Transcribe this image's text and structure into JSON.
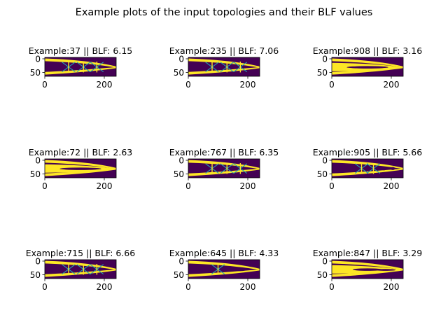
{
  "suptitle": "Example plots of the input topologies and their BLF values",
  "colors": {
    "background": "#440154",
    "material": "#fde725",
    "edge_teal": "#21a5b4",
    "edge_mid": "#3cbc75",
    "axes_frame": "#000000"
  },
  "chart_data": [
    {
      "type": "heatmap",
      "title": "Example:37 || BLF: 6.15",
      "xticks": [
        "0",
        "200"
      ],
      "yticks": [
        "0",
        "50"
      ],
      "xlim": [
        0,
        240
      ],
      "ylim": [
        63,
        0
      ],
      "topology": "truss-3x"
    },
    {
      "type": "heatmap",
      "title": "Example:235 || BLF: 7.06",
      "xticks": [
        "0",
        "200"
      ],
      "yticks": [
        "0",
        "50"
      ],
      "xlim": [
        0,
        240
      ],
      "ylim": [
        63,
        0
      ],
      "topology": "truss-web"
    },
    {
      "type": "heatmap",
      "title": "Example:908 || BLF: 3.16",
      "xticks": [
        "0",
        "200"
      ],
      "yticks": [
        "0",
        "50"
      ],
      "xlim": [
        0,
        240
      ],
      "ylim": [
        63,
        0
      ],
      "topology": "solid-1hole"
    },
    {
      "type": "heatmap",
      "title": "Example:72 || BLF: 2.63",
      "xticks": [
        "0",
        "200"
      ],
      "yticks": [
        "0",
        "50"
      ],
      "xlim": [
        0,
        240
      ],
      "ylim": [
        63,
        0
      ],
      "topology": "solid-1hole"
    },
    {
      "type": "heatmap",
      "title": "Example:767 || BLF: 6.35",
      "xticks": [
        "0",
        "200"
      ],
      "yticks": [
        "0",
        "50"
      ],
      "xlim": [
        0,
        240
      ],
      "ylim": [
        63,
        0
      ],
      "topology": "truss-3x"
    },
    {
      "type": "heatmap",
      "title": "Example:905 || BLF: 5.66",
      "xticks": [
        "0",
        "200"
      ],
      "yticks": [
        "0",
        "50"
      ],
      "xlim": [
        0,
        240
      ],
      "ylim": [
        63,
        0
      ],
      "topology": "truss-2x-holes"
    },
    {
      "type": "heatmap",
      "title": "Example:715 || BLF: 6.66",
      "xticks": [
        "0",
        "200"
      ],
      "yticks": [
        "0",
        "50"
      ],
      "xlim": [
        0,
        240
      ],
      "ylim": [
        63,
        0
      ],
      "topology": "truss-3x"
    },
    {
      "type": "heatmap",
      "title": "Example:645 || BLF: 4.33",
      "xticks": [
        "0",
        "200"
      ],
      "yticks": [
        "0",
        "50"
      ],
      "xlim": [
        0,
        240
      ],
      "ylim": [
        63,
        0
      ],
      "topology": "truss-1x"
    },
    {
      "type": "heatmap",
      "title": "Example:847 || BLF: 3.29",
      "xticks": [
        "0",
        "200"
      ],
      "yticks": [
        "0",
        "50"
      ],
      "xlim": [
        0,
        240
      ],
      "ylim": [
        63,
        0
      ],
      "topology": "solid-2hole"
    }
  ]
}
